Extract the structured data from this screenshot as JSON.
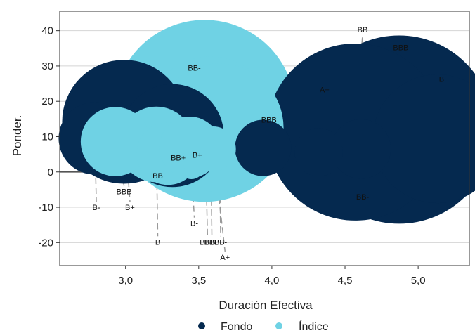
{
  "chart_data": {
    "type": "scatter",
    "xlabel": "Duración Efectiva",
    "ylabel": "Ponder.",
    "xlim": [
      2.55,
      5.35
    ],
    "ylim": [
      -26.5,
      45.5
    ],
    "x_ticks": [
      3.0,
      3.5,
      4.0,
      4.5,
      5.0
    ],
    "x_tick_labels": [
      "3,0",
      "3,5",
      "4,0",
      "4,5",
      "5,0"
    ],
    "y_ticks": [
      -20,
      -10,
      0,
      10,
      20,
      30,
      40
    ],
    "y_tick_labels": [
      "-20",
      "-10",
      "0",
      "10",
      "20",
      "30",
      "40"
    ],
    "grid": "horizontal",
    "legend_position": "bottom",
    "colors": {
      "fondo": "#05294f",
      "indice": "#6fd2e4",
      "zero_line": "#555555",
      "leader": "#999999"
    },
    "series": [
      {
        "name": "Fondo",
        "color": "#05294f",
        "points": [
          {
            "x": 2.79,
            "y": 9.5,
            "size": 4.5,
            "label": "B-",
            "label_x": 2.8,
            "label_y": -10
          },
          {
            "x": 2.99,
            "y": 14.2,
            "size": 7.7,
            "label": "B+",
            "label_x": 3.03,
            "label_y": -10
          },
          {
            "x": 3.32,
            "y": 10.3,
            "size": 6.4,
            "label": "BB+",
            "label_x": 3.36,
            "label_y": 4
          },
          {
            "x": 3.94,
            "y": 6.8,
            "size": 3.5,
            "label": "BBB",
            "label_x": 3.98,
            "label_y": 14
          },
          {
            "x": 4.32,
            "y": 5.6,
            "size": 3.0,
            "label": "A+",
            "label_x": 4.36,
            "label_y": 22.5
          },
          {
            "x": 4.61,
            "y": 6.5,
            "size": 3.7,
            "label": "BB-",
            "label_x": 4.62,
            "label_y": -7
          },
          {
            "x": 4.57,
            "y": 11.3,
            "size": 11.0,
            "label": "BB",
            "label_x": 4.62,
            "label_y": 39.5
          },
          {
            "x": 4.87,
            "y": 12.0,
            "size": 11.7,
            "label": "BBB-",
            "label_x": 4.89,
            "label_y": 34.5
          },
          {
            "x": 5.13,
            "y": 9.4,
            "size": 8.0,
            "label": "B",
            "label_x": 5.16,
            "label_y": 25.5
          }
        ]
      },
      {
        "name": "Índice",
        "color": "#6fd2e4",
        "points": [
          {
            "x": 2.93,
            "y": 8.6,
            "size": 4.3,
            "label": "BBB",
            "label_x": 2.99,
            "label_y": -5.5
          },
          {
            "x": 3.21,
            "y": 7.8,
            "size": 4.7,
            "label": "B",
            "label_x": 3.22,
            "label_y": -19.8
          },
          {
            "x": 3.29,
            "y": 5.2,
            "size": 3.9,
            "label": "BB",
            "label_x": 3.22,
            "label_y": -1
          },
          {
            "x": 3.44,
            "y": 7.0,
            "size": 3.8,
            "label": "BB-",
            "label_x": 3.47,
            "label_y": 28.7
          },
          {
            "x": 3.45,
            "y": 1.6,
            "size": 1.6,
            "label": "B-",
            "label_x": 3.47,
            "label_y": -14.5
          },
          {
            "x": 3.48,
            "y": 2.0,
            "size": 1.5,
            "label": "B+",
            "label_x": 3.49,
            "label_y": 4
          },
          {
            "x": 3.54,
            "y": 17.3,
            "size": 11.3,
            "label": "BBB",
            "label_x": 3.56,
            "label_y": -19.8
          },
          {
            "x": 3.58,
            "y": 14.5,
            "size": 8.0,
            "label": "BBB",
            "label_x": 3.59,
            "label_y": -19.8
          },
          {
            "x": 3.64,
            "y": 12.5,
            "size": 8.0,
            "label": "BB-",
            "label_x": 3.65,
            "label_y": -19.8
          },
          {
            "x": 3.6,
            "y": 6.5,
            "size": 2.8,
            "label": "A+",
            "label_x": 3.68,
            "label_y": -24.1
          }
        ]
      }
    ]
  }
}
